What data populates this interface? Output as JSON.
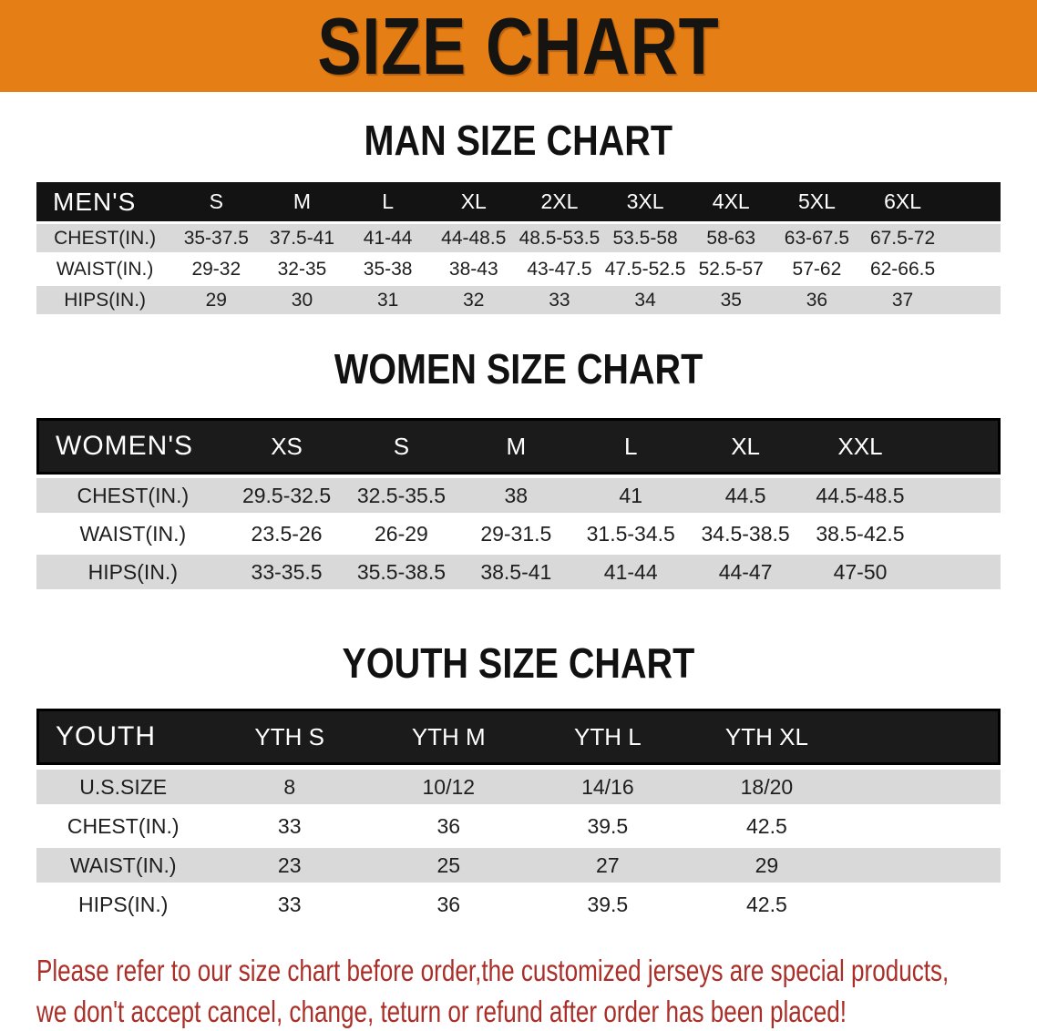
{
  "banner": {
    "title": "SIZE CHART"
  },
  "sections": [
    {
      "heading": "MAN SIZE CHART",
      "table": {
        "label": "MEN'S",
        "columns": [
          "S",
          "M",
          "L",
          "XL",
          "2XL",
          "3XL",
          "4XL",
          "5XL",
          "6XL"
        ],
        "rows": [
          {
            "label": "CHEST(IN.)",
            "values": [
              "35-37.5",
              "37.5-41",
              "41-44",
              "44-48.5",
              "48.5-53.5",
              "53.5-58",
              "58-63",
              "63-67.5",
              "67.5-72"
            ]
          },
          {
            "label": "WAIST(IN.)",
            "values": [
              "29-32",
              "32-35",
              "35-38",
              "38-43",
              "43-47.5",
              "47.5-52.5",
              "52.5-57",
              "57-62",
              "62-66.5"
            ]
          },
          {
            "label": "HIPS(IN.)",
            "values": [
              "29",
              "30",
              "31",
              "32",
              "33",
              "34",
              "35",
              "36",
              "37"
            ]
          }
        ]
      }
    },
    {
      "heading": "WOMEN SIZE CHART",
      "table": {
        "label": "WOMEN'S",
        "columns": [
          "XS",
          "S",
          "M",
          "L",
          "XL",
          "XXL"
        ],
        "rows": [
          {
            "label": "CHEST(IN.)",
            "values": [
              "29.5-32.5",
              "32.5-35.5",
              "38",
              "41",
              "44.5",
              "44.5-48.5"
            ]
          },
          {
            "label": "WAIST(IN.)",
            "values": [
              "23.5-26",
              "26-29",
              "29-31.5",
              "31.5-34.5",
              "34.5-38.5",
              "38.5-42.5"
            ]
          },
          {
            "label": "HIPS(IN.)",
            "values": [
              "33-35.5",
              "35.5-38.5",
              "38.5-41",
              "41-44",
              "44-47",
              "47-50"
            ]
          }
        ]
      }
    },
    {
      "heading": "YOUTH SIZE CHART",
      "table": {
        "label": "YOUTH",
        "columns": [
          "YTH S",
          "YTH M",
          "YTH L",
          "YTH XL"
        ],
        "rows": [
          {
            "label": "U.S.SIZE",
            "values": [
              "8",
              "10/12",
              "14/16",
              "18/20"
            ]
          },
          {
            "label": "CHEST(IN.)",
            "values": [
              "33",
              "36",
              "39.5",
              "42.5"
            ]
          },
          {
            "label": "WAIST(IN.)",
            "values": [
              "23",
              "25",
              "27",
              "29"
            ]
          },
          {
            "label": "HIPS(IN.)",
            "values": [
              "33",
              "36",
              "39.5",
              "42.5"
            ]
          }
        ]
      }
    }
  ],
  "disclaimer": {
    "line1": "Please refer to our size chart before order,the customized jerseys are special products,",
    "line2": "we don't accept cancel, change, teturn or refund after order has been placed!"
  },
  "colors": {
    "banner_bg": "#e67e16",
    "header_bar": "#131313",
    "framed_bar": "#1b1b1b",
    "stripe": "#d9d9d9",
    "disclaimer_text": "#aa2f28"
  }
}
